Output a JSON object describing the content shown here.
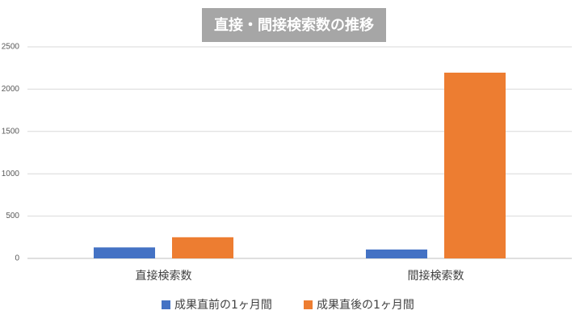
{
  "chart_data": {
    "type": "bar",
    "title": "直接・間接検索数の推移",
    "categories": [
      "直接検索数",
      "間接検索数"
    ],
    "series": [
      {
        "name": "成果直前の1ヶ月間",
        "values": [
          130,
          105
        ],
        "color": "#4472C4"
      },
      {
        "name": "成果直後の1ヶ月間",
        "values": [
          250,
          2195
        ],
        "color": "#ED7D31"
      }
    ],
    "ylim": [
      0,
      2500
    ],
    "yticks": [
      0,
      500,
      1000,
      1500,
      2000,
      2500
    ],
    "grid": true,
    "legend_position": "bottom",
    "title_background": "#A6A6A6"
  }
}
